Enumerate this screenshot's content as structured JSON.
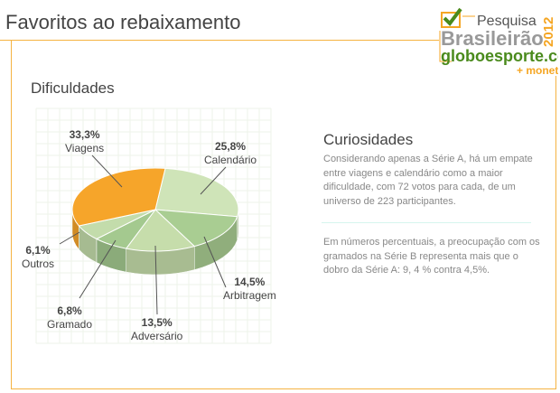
{
  "header": {
    "title": "Favoritos ao rebaixamento"
  },
  "logo": {
    "line1": "Pesquisa",
    "line2": "Brasileirão",
    "year": "2012",
    "line3": "globoesporte.com",
    "line4": "+ monet",
    "accent": "#f5a623",
    "green": "#4a8a1c"
  },
  "chart_data": {
    "type": "pie",
    "title": "Dificuldades",
    "categories": [
      "Calendário",
      "Arbitragem",
      "Adversário",
      "Gramado",
      "Outros",
      "Viagens"
    ],
    "values": [
      25.8,
      14.5,
      13.5,
      6.8,
      6.1,
      33.3
    ],
    "labels": [
      "25,8%",
      "14,5%",
      "13,5%",
      "6,8%",
      "6,1%",
      "33,3%"
    ],
    "colors": [
      "#cfe4b8",
      "#a9cd92",
      "#c6ddab",
      "#a4c98f",
      "#c3dcab",
      "#f6a52a"
    ]
  },
  "side": {
    "title": "Curiosidades",
    "p1": "Considerando apenas a Série A, há um empate entre viagens e calendário como a maior dificuldade, com 72 votos para cada, de um universo de 223 participantes.",
    "p2": "Em números percentuais, a preocupação com os gramados na Série B representa mais que o dobro da Série A: 9, 4 % contra 4,5%."
  }
}
